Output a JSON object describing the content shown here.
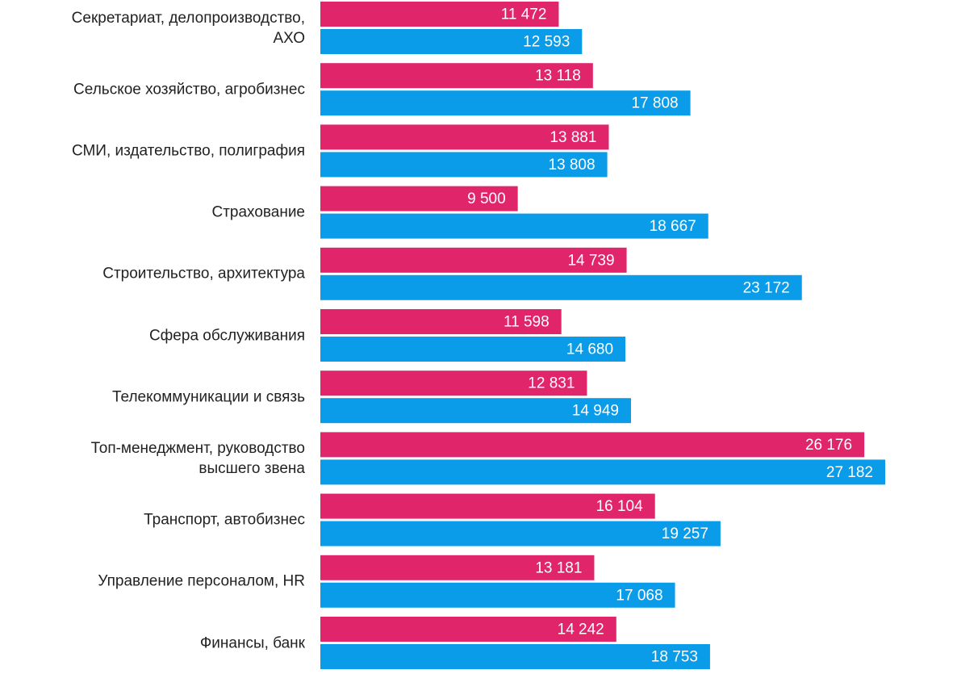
{
  "chart_data": {
    "type": "bar",
    "orientation": "horizontal",
    "categories": [
      "Секретариат, делопроизводство,\nАХО",
      "Сельское хозяйство, агробизнес",
      "СМИ, издательство, полиграфия",
      "Страхование",
      "Строительство, архитектура",
      "Сфера обслуживания",
      "Телекоммуникации и связь",
      "Топ-менеджмент, руководство\nвысшего звена",
      "Транспорт, автобизнес",
      "Управление персоналом, HR",
      "Финансы, банк"
    ],
    "series": [
      {
        "color": "#e0256b",
        "values": [
          11472,
          13118,
          13881,
          9500,
          14739,
          11598,
          12831,
          26176,
          16104,
          13181,
          14242
        ],
        "value_labels": [
          "11 472",
          "13 118",
          "13 881",
          "9 500",
          "14 739",
          "11 598",
          "12 831",
          "26 176",
          "16 104",
          "13 181",
          "14 242"
        ]
      },
      {
        "color": "#0a9ce8",
        "values": [
          12593,
          17808,
          13808,
          18667,
          23172,
          14680,
          14949,
          27182,
          19257,
          17068,
          18753
        ],
        "value_labels": [
          "12 593",
          "17 808",
          "13 808",
          "18 667",
          "23 172",
          "14 680",
          "14 949",
          "27 182",
          "19 257",
          "17 068",
          "18 753"
        ]
      }
    ]
  }
}
